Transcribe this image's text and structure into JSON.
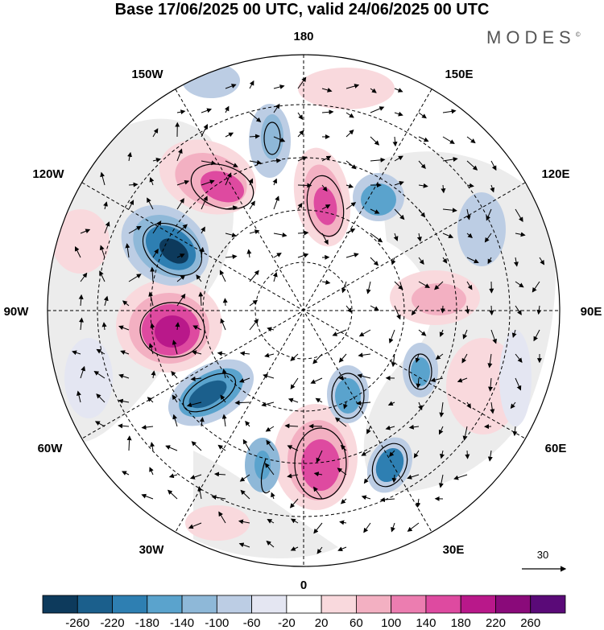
{
  "title": "Base 17/06/2025 00 UTC, valid 24/06/2025 00 UTC",
  "brand": "MODES",
  "brand_mark": "©",
  "longitude_labels": {
    "n180": "180",
    "e150": "150E",
    "e120": "120E",
    "e90": "90E",
    "e60": "60E",
    "e30": "30E",
    "s0": "0",
    "w30": "30W",
    "w60": "60W",
    "w90": "90W",
    "w120": "120W",
    "w150": "150W"
  },
  "reference_vector": {
    "label": "30"
  },
  "colorbar": {
    "ticks": [
      "-260",
      "-220",
      "-180",
      "-140",
      "-100",
      "-60",
      "-20",
      "20",
      "60",
      "100",
      "140",
      "180",
      "220",
      "260"
    ],
    "colors": [
      "#0d3a5c",
      "#1b5f8c",
      "#2e7fb2",
      "#5aa3cd",
      "#8eb8d8",
      "#bccde4",
      "#e4e6f2",
      "#ffffff",
      "#f9d9dd",
      "#f3b0c2",
      "#ec7db0",
      "#de4aa0",
      "#b9188a",
      "#8a0a7a",
      "#5a0a78"
    ]
  },
  "colors": {
    "land": "#ececec",
    "ocean": "#ffffff",
    "grid": "#000000"
  }
}
